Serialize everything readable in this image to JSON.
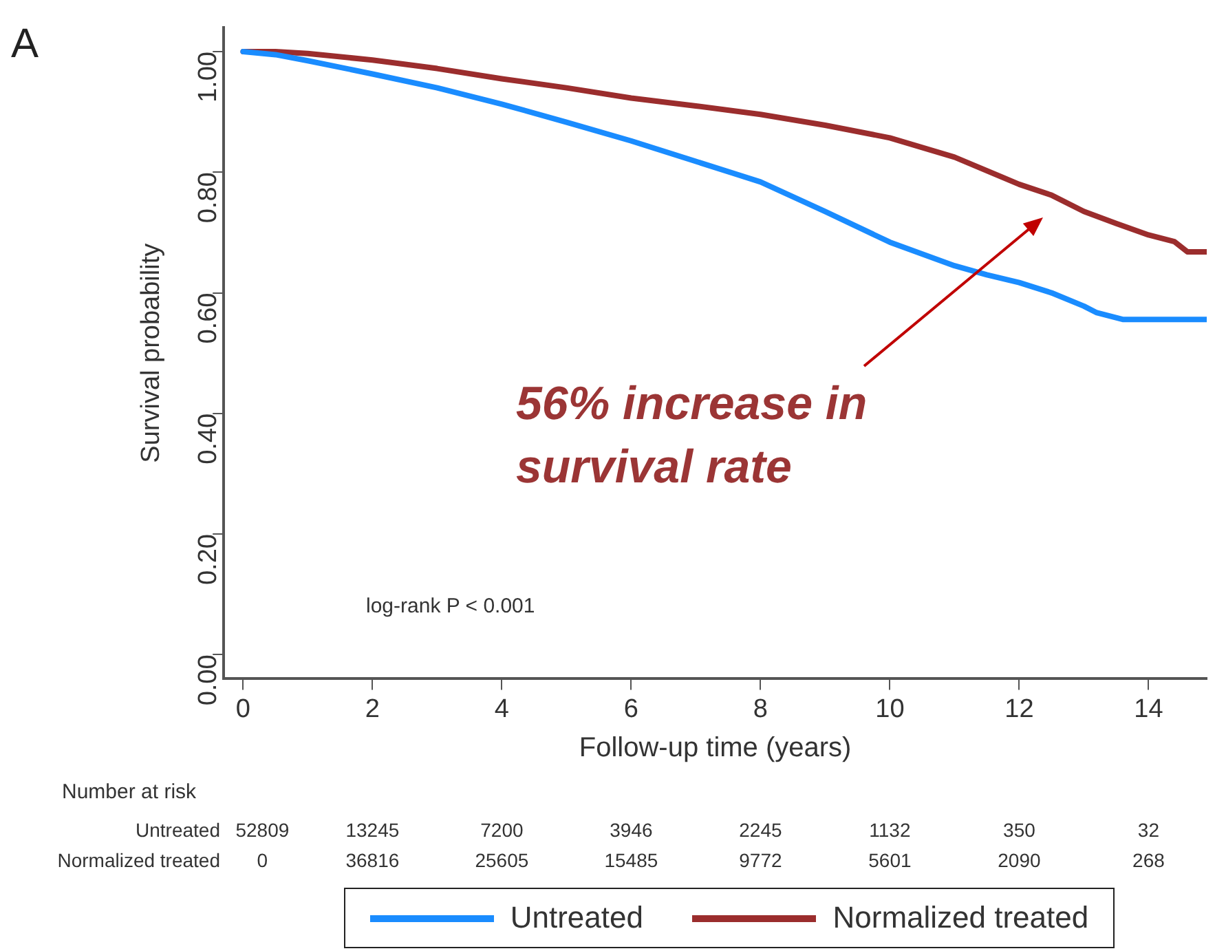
{
  "chart_data": {
    "type": "line",
    "xlabel": "Follow-up time (years)",
    "ylabel": "Survival probability",
    "xlim": [
      -0.3,
      14.9
    ],
    "xticks": [
      0,
      2,
      4,
      6,
      8,
      10,
      12,
      14
    ],
    "ylim": [
      -0.04,
      1.04
    ],
    "yticks": [
      {
        "value": 0,
        "label": "0.00"
      },
      {
        "value": 0.2,
        "label": "0.20"
      },
      {
        "value": 0.4,
        "label": "0.40"
      },
      {
        "value": 0.6,
        "label": "0.60"
      },
      {
        "value": 0.8,
        "label": "0.80"
      },
      {
        "value": 1,
        "label": "1.00"
      }
    ],
    "series": [
      {
        "name": "Untreated",
        "color": "#1a8cff",
        "x": [
          0,
          0.5,
          1,
          2,
          3,
          4,
          5,
          6,
          7,
          8,
          9,
          10,
          11,
          11.5,
          12,
          12.5,
          13,
          13.2,
          13.6,
          14,
          14.9
        ],
        "values": [
          1,
          0.995,
          0.985,
          0.963,
          0.94,
          0.913,
          0.883,
          0.852,
          0.818,
          0.784,
          0.735,
          0.684,
          0.645,
          0.63,
          0.617,
          0.6,
          0.578,
          0.567,
          0.556,
          0.556,
          0.556
        ]
      },
      {
        "name": "Normalized treated",
        "color": "#9b2d2d",
        "x": [
          0,
          0.5,
          1,
          2,
          3,
          4,
          5,
          6,
          7,
          8,
          9,
          10,
          11,
          12,
          12.5,
          13,
          13.5,
          14,
          14.4,
          14.6,
          14.9
        ],
        "values": [
          1,
          1,
          0.997,
          0.986,
          0.972,
          0.955,
          0.94,
          0.923,
          0.91,
          0.896,
          0.878,
          0.857,
          0.825,
          0.78,
          0.762,
          0.735,
          0.715,
          0.696,
          0.685,
          0.668,
          0.668
        ]
      }
    ],
    "annotations": [
      "A",
      "log-rank P < 0.001",
      "56% increase in survival rate",
      "Number at risk",
      "Untreated 52809 13245 7200 3946 2245 1132 350 32",
      "Normalized treated 0 36816 25605 15485 9772 5601 2090 268"
    ],
    "grid": false,
    "legend": "bottom",
    "marker": "none",
    "line_style": "solid"
  }
}
